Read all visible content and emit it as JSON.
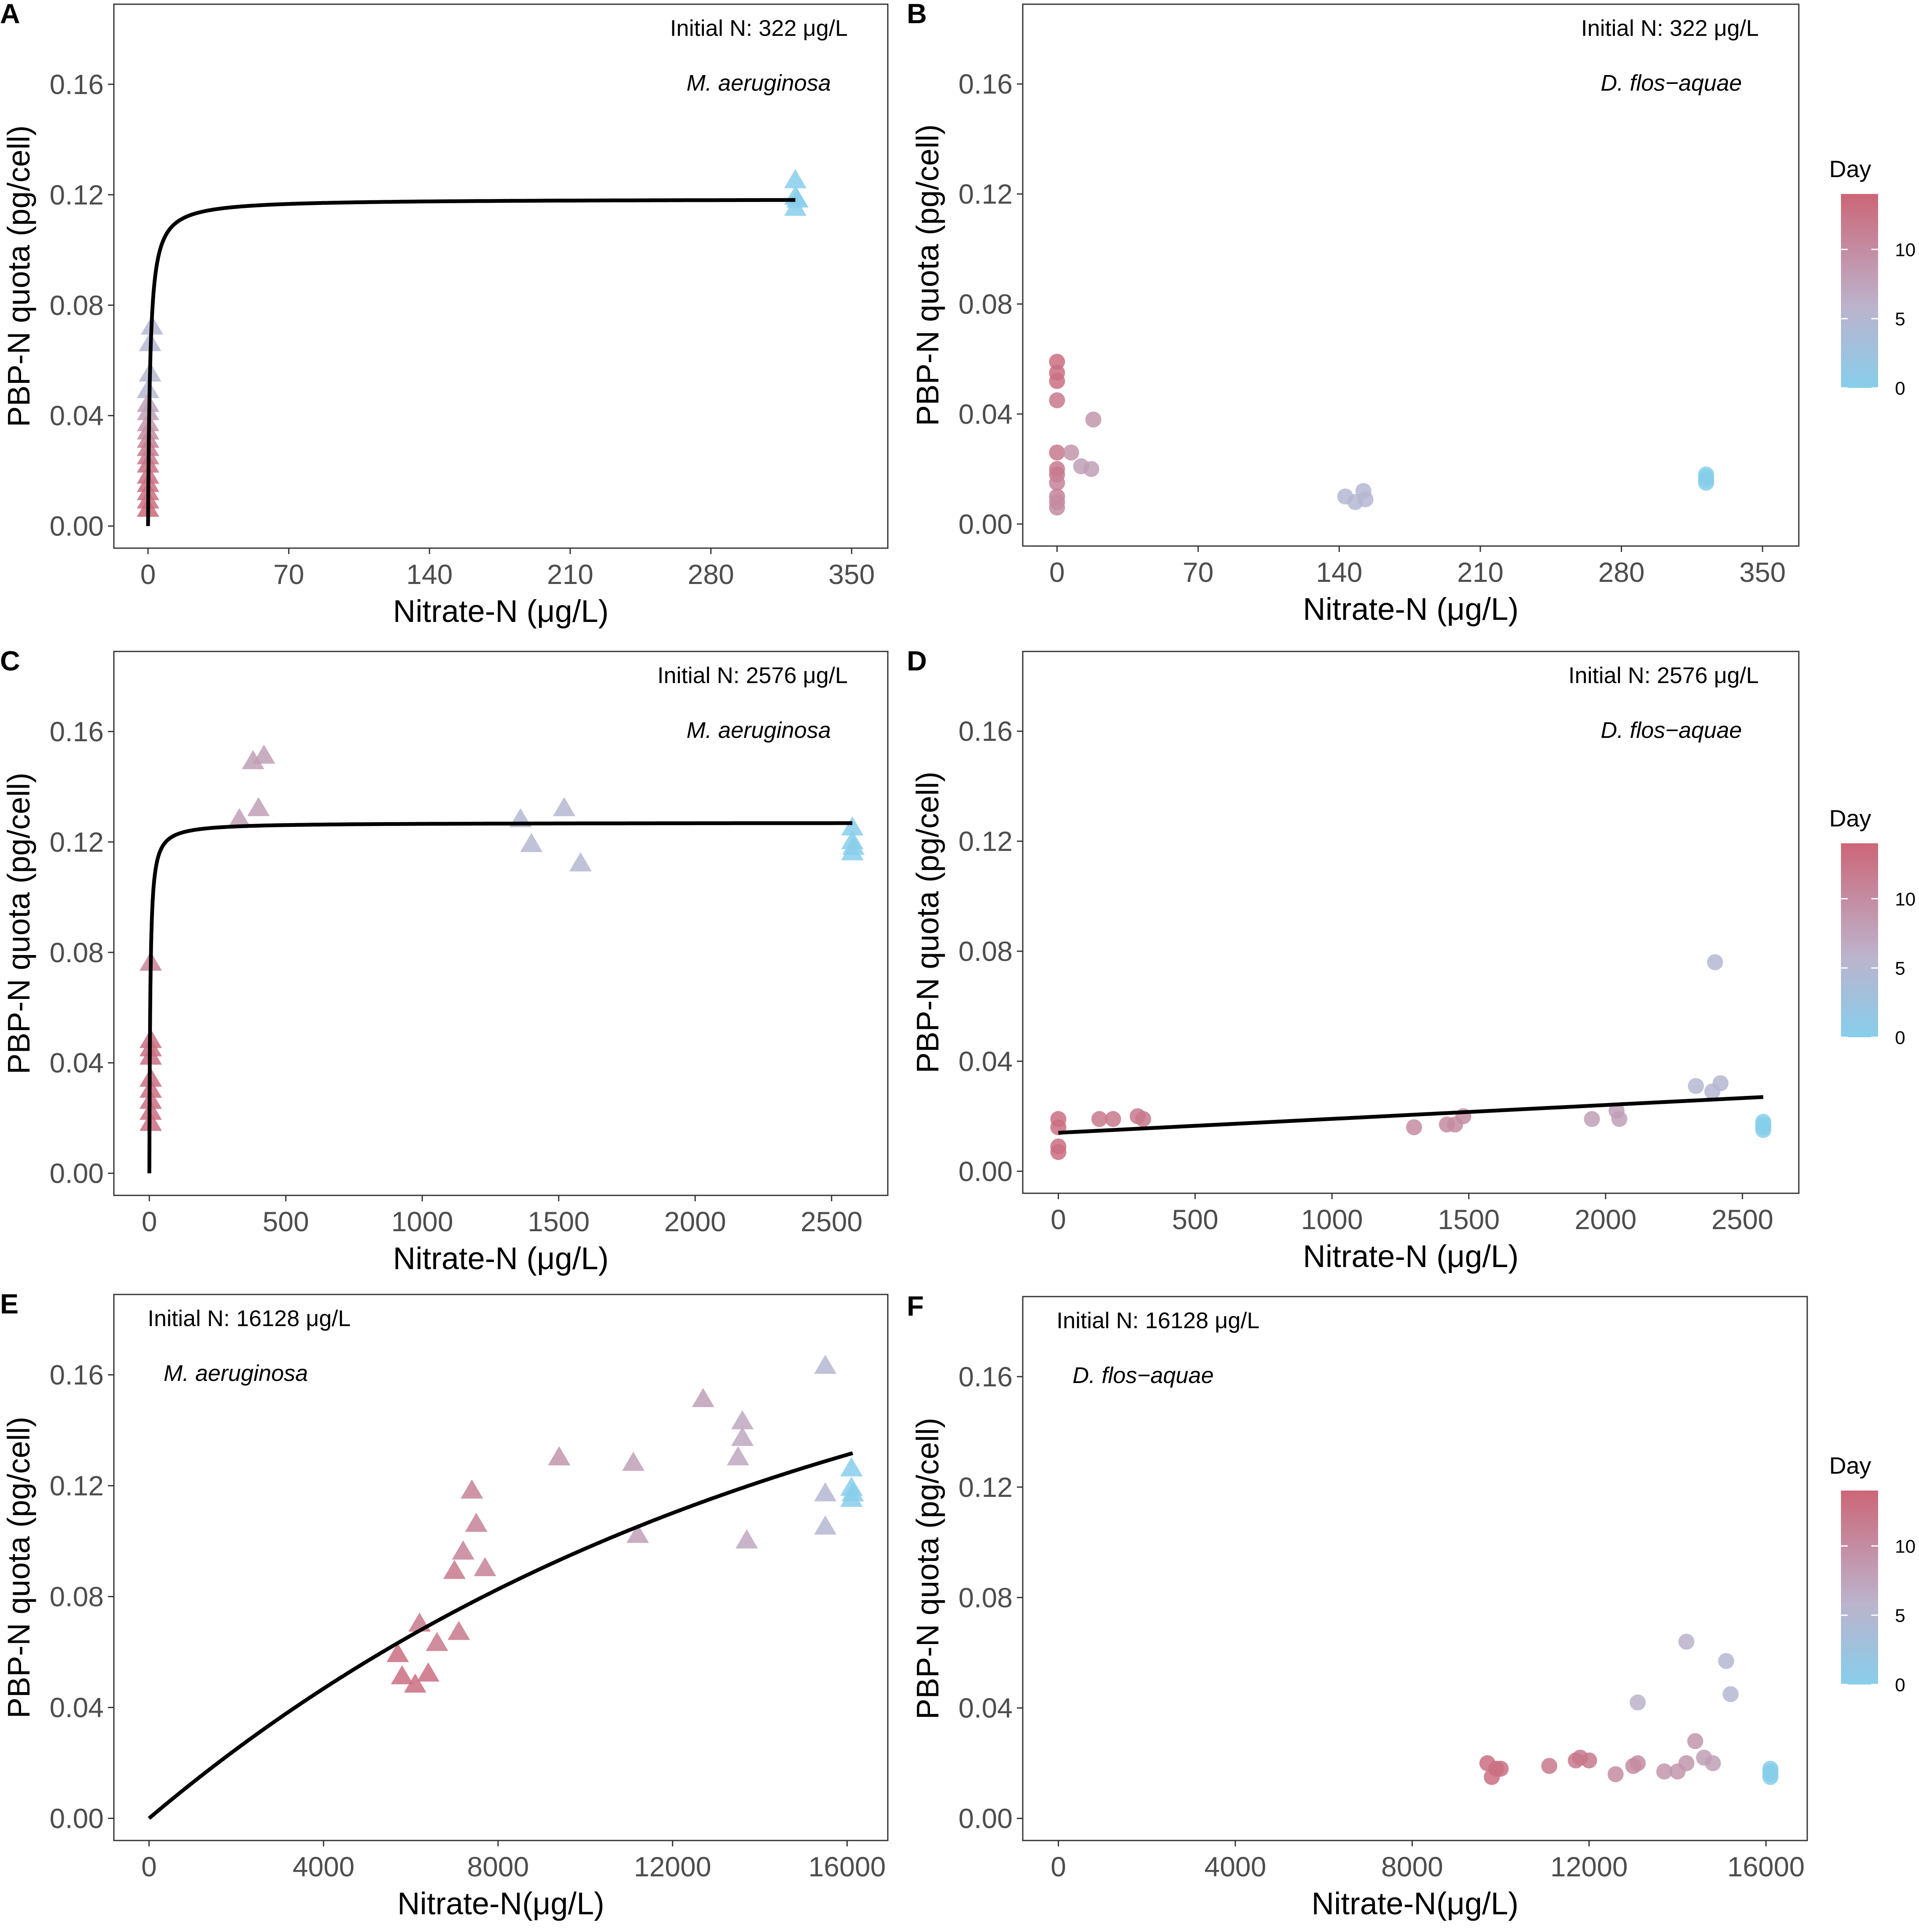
{
  "colors": {
    "low": "#87ceeb",
    "mid": "#bcb3cc",
    "high": "#cc6677",
    "line": "#000000",
    "axis": "#333333"
  },
  "legend": {
    "title": "Day",
    "ticks": [
      "10",
      "5",
      "0"
    ],
    "tick_values": [
      10,
      5,
      0
    ],
    "day_max": 14
  },
  "chart_data": [
    {
      "id": "A",
      "type": "scatter",
      "marker": "triangle",
      "panel_label": "A",
      "initial_n": "Initial N: 322 μg/L",
      "species": "M. aeruginosa",
      "xlabel": "Nitrate-N (μg/L)",
      "ylabel": "PBP-N quota (pg/cell)",
      "xlim": [
        -17,
        368
      ],
      "ylim": [
        -0.008,
        0.189
      ],
      "xticks": [
        0,
        70,
        140,
        210,
        280,
        350
      ],
      "xtick_labels": [
        "0",
        "70",
        "140",
        "210",
        "280",
        "350"
      ],
      "yticks": [
        0,
        0.04,
        0.08,
        0.12,
        0.16
      ],
      "ytick_labels": [
        "0.00",
        "0.04",
        "0.08",
        "0.12",
        "0.16"
      ],
      "annot_pos": "top-right",
      "points": [
        [
          322,
          0.125,
          0
        ],
        [
          322,
          0.119,
          0
        ],
        [
          322,
          0.115,
          0
        ],
        [
          323,
          0.118,
          0
        ],
        [
          2,
          0.072,
          5
        ],
        [
          1,
          0.066,
          5
        ],
        [
          1,
          0.055,
          5
        ],
        [
          0,
          0.049,
          5
        ],
        [
          0,
          0.044,
          8
        ],
        [
          0,
          0.041,
          8
        ],
        [
          0,
          0.037,
          9
        ],
        [
          0,
          0.034,
          10
        ],
        [
          0,
          0.031,
          11
        ],
        [
          0,
          0.028,
          12
        ],
        [
          0,
          0.025,
          12
        ],
        [
          0,
          0.022,
          13
        ],
        [
          0,
          0.018,
          13
        ],
        [
          0,
          0.015,
          13
        ],
        [
          0,
          0.012,
          13
        ],
        [
          0,
          0.009,
          13
        ],
        [
          0,
          0.006,
          14
        ]
      ],
      "fit": {
        "model": "michaelis",
        "qmax": 0.1185,
        "k": 1.1,
        "xmax": 322
      }
    },
    {
      "id": "B",
      "type": "scatter",
      "marker": "circle",
      "panel_label": "B",
      "initial_n": "Initial N: 322 μg/L",
      "species": "D. flos−aquae",
      "xlabel": "Nitrate-N (μg/L)",
      "ylabel": "PBP-N quota (pg/cell)",
      "xlim": [
        -17,
        368
      ],
      "ylim": [
        -0.008,
        0.189
      ],
      "xticks": [
        0,
        70,
        140,
        210,
        280,
        350
      ],
      "xtick_labels": [
        "0",
        "70",
        "140",
        "210",
        "280",
        "350"
      ],
      "yticks": [
        0,
        0.04,
        0.08,
        0.12,
        0.16
      ],
      "ytick_labels": [
        "0.00",
        "0.04",
        "0.08",
        "0.12",
        "0.16"
      ],
      "annot_pos": "top-right",
      "points": [
        [
          0,
          0.059,
          13
        ],
        [
          0,
          0.055,
          13
        ],
        [
          0,
          0.052,
          13
        ],
        [
          0,
          0.045,
          12
        ],
        [
          0,
          0.026,
          12
        ],
        [
          0,
          0.02,
          12
        ],
        [
          0,
          0.018,
          12
        ],
        [
          0,
          0.015,
          11
        ],
        [
          0,
          0.01,
          11
        ],
        [
          0,
          0.008,
          10
        ],
        [
          0,
          0.006,
          10
        ],
        [
          7,
          0.026,
          9
        ],
        [
          12,
          0.021,
          8
        ],
        [
          17,
          0.02,
          8
        ],
        [
          18,
          0.038,
          9
        ],
        [
          143,
          0.01,
          5
        ],
        [
          148,
          0.008,
          5
        ],
        [
          152,
          0.012,
          5
        ],
        [
          153,
          0.009,
          5
        ],
        [
          322,
          0.018,
          0
        ],
        [
          322,
          0.016,
          0
        ],
        [
          322,
          0.015,
          0
        ],
        [
          322,
          0.017,
          0
        ]
      ]
    },
    {
      "id": "C",
      "type": "scatter",
      "marker": "triangle",
      "panel_label": "C",
      "initial_n": "Initial N: 2576 μg/L",
      "species": "M. aeruginosa",
      "xlabel": "Nitrate-N (μg/L)",
      "ylabel": "PBP-N quota (pg/cell)",
      "xlim": [
        -130,
        2706
      ],
      "ylim": [
        -0.008,
        0.189
      ],
      "xticks": [
        0,
        500,
        1000,
        1500,
        2000,
        2500
      ],
      "xtick_labels": [
        "0",
        "500",
        "1000",
        "1500",
        "2000",
        "2500"
      ],
      "yticks": [
        0,
        0.04,
        0.08,
        0.12,
        0.16
      ],
      "ytick_labels": [
        "0.00",
        "0.04",
        "0.08",
        "0.12",
        "0.16"
      ],
      "annot_pos": "top-right",
      "points": [
        [
          2576,
          0.125,
          0
        ],
        [
          2576,
          0.12,
          0
        ],
        [
          2576,
          0.116,
          0
        ],
        [
          2580,
          0.118,
          0
        ],
        [
          1360,
          0.128,
          5
        ],
        [
          1400,
          0.119,
          5
        ],
        [
          1520,
          0.132,
          5
        ],
        [
          1580,
          0.112,
          5
        ],
        [
          330,
          0.128,
          8
        ],
        [
          380,
          0.149,
          8
        ],
        [
          400,
          0.132,
          8
        ],
        [
          420,
          0.151,
          8
        ],
        [
          5,
          0.076,
          11
        ],
        [
          5,
          0.048,
          13
        ],
        [
          5,
          0.045,
          13
        ],
        [
          5,
          0.042,
          13
        ],
        [
          5,
          0.034,
          13
        ],
        [
          5,
          0.03,
          13
        ],
        [
          5,
          0.026,
          13
        ],
        [
          5,
          0.022,
          13
        ],
        [
          5,
          0.018,
          13
        ]
      ],
      "fit": {
        "model": "michaelis",
        "qmax": 0.127,
        "k": 3.5,
        "xmax": 2576
      }
    },
    {
      "id": "D",
      "type": "scatter",
      "marker": "circle",
      "panel_label": "D",
      "initial_n": "Initial N: 2576 μg/L",
      "species": "D. flos−aquae",
      "xlabel": "Nitrate-N (μg/L)",
      "ylabel": "PBP-N quota (pg/cell)",
      "xlim": [
        -130,
        2706
      ],
      "ylim": [
        -0.008,
        0.189
      ],
      "xticks": [
        0,
        500,
        1000,
        1500,
        2000,
        2500
      ],
      "xtick_labels": [
        "0",
        "500",
        "1000",
        "1500",
        "2000",
        "2500"
      ],
      "yticks": [
        0,
        0.04,
        0.08,
        0.12,
        0.16
      ],
      "ytick_labels": [
        "0.00",
        "0.04",
        "0.08",
        "0.12",
        "0.16"
      ],
      "annot_pos": "top-right",
      "points": [
        [
          0,
          0.019,
          13
        ],
        [
          0,
          0.016,
          13
        ],
        [
          0,
          0.009,
          13
        ],
        [
          0,
          0.007,
          13
        ],
        [
          150,
          0.019,
          12
        ],
        [
          200,
          0.019,
          12
        ],
        [
          290,
          0.02,
          12
        ],
        [
          310,
          0.019,
          12
        ],
        [
          1300,
          0.016,
          10
        ],
        [
          1420,
          0.017,
          10
        ],
        [
          1450,
          0.017,
          10
        ],
        [
          1480,
          0.02,
          10
        ],
        [
          1950,
          0.019,
          8
        ],
        [
          2040,
          0.022,
          8
        ],
        [
          2050,
          0.019,
          8
        ],
        [
          2330,
          0.031,
          5
        ],
        [
          2390,
          0.029,
          5
        ],
        [
          2400,
          0.076,
          5
        ],
        [
          2420,
          0.032,
          5
        ],
        [
          2576,
          0.018,
          0
        ],
        [
          2576,
          0.016,
          0
        ],
        [
          2576,
          0.015,
          0
        ],
        [
          2576,
          0.017,
          0
        ]
      ],
      "fit": {
        "model": "linear",
        "x": [
          0,
          2576
        ],
        "y": [
          0.014,
          0.027
        ]
      }
    },
    {
      "id": "E",
      "type": "scatter",
      "marker": "triangle",
      "panel_label": "E",
      "initial_n": "Initial N: 16128 μg/L",
      "species": "M. aeruginosa",
      "xlabel": "Nitrate-N(μg/L)",
      "ylabel": "PBP-N quota (pg/cell)",
      "xlim": [
        -806,
        16933
      ],
      "ylim": [
        -0.008,
        0.189
      ],
      "xticks": [
        0,
        4000,
        8000,
        12000,
        16000
      ],
      "xtick_labels": [
        "0",
        "4000",
        "8000",
        "12000",
        "16000"
      ],
      "yticks": [
        0,
        0.04,
        0.08,
        0.12,
        0.16
      ],
      "ytick_labels": [
        "0.00",
        "0.04",
        "0.08",
        "0.12",
        "0.16"
      ],
      "annot_pos": "top-left",
      "points": [
        [
          16100,
          0.126,
          0
        ],
        [
          16100,
          0.119,
          0
        ],
        [
          16100,
          0.115,
          0
        ],
        [
          16130,
          0.117,
          0
        ],
        [
          15500,
          0.163,
          5
        ],
        [
          15500,
          0.117,
          5
        ],
        [
          15500,
          0.105,
          5
        ],
        [
          13600,
          0.143,
          7
        ],
        [
          13600,
          0.137,
          7
        ],
        [
          13500,
          0.13,
          7
        ],
        [
          13700,
          0.1,
          7
        ],
        [
          12700,
          0.151,
          8
        ],
        [
          11100,
          0.128,
          8
        ],
        [
          11200,
          0.102,
          8
        ],
        [
          9400,
          0.13,
          9
        ],
        [
          7400,
          0.118,
          11
        ],
        [
          7500,
          0.106,
          11
        ],
        [
          7700,
          0.09,
          11
        ],
        [
          7200,
          0.096,
          11
        ],
        [
          7000,
          0.089,
          12
        ],
        [
          7100,
          0.067,
          12
        ],
        [
          6600,
          0.063,
          12
        ],
        [
          6200,
          0.07,
          12
        ],
        [
          6400,
          0.052,
          13
        ],
        [
          5700,
          0.059,
          13
        ],
        [
          5800,
          0.051,
          13
        ],
        [
          6100,
          0.048,
          13
        ]
      ],
      "fit": {
        "model": "saturating-exp",
        "qmax": 0.2,
        "k": 15000,
        "xmax": 16128
      }
    },
    {
      "id": "F",
      "type": "scatter",
      "marker": "circle",
      "panel_label": "F",
      "initial_n": "Initial N: 16128 μg/L",
      "species": "D. flos−aquae",
      "xlabel": "Nitrate-N(μg/L)",
      "ylabel": "PBP-N quota (pg/cell)",
      "xlim": [
        -806,
        16933
      ],
      "ylim": [
        -0.008,
        0.189
      ],
      "xticks": [
        0,
        4000,
        8000,
        12000,
        16000
      ],
      "xtick_labels": [
        "0",
        "4000",
        "8000",
        "12000",
        "16000"
      ],
      "yticks": [
        0,
        0.04,
        0.08,
        0.12,
        0.16
      ],
      "ytick_labels": [
        "0.00",
        "0.04",
        "0.08",
        "0.12",
        "0.16"
      ],
      "annot_pos": "top-left",
      "points": [
        [
          9700,
          0.02,
          13
        ],
        [
          9800,
          0.015,
          13
        ],
        [
          9900,
          0.018,
          13
        ],
        [
          10000,
          0.018,
          13
        ],
        [
          11100,
          0.019,
          12
        ],
        [
          11700,
          0.021,
          12
        ],
        [
          11800,
          0.022,
          12
        ],
        [
          12000,
          0.021,
          12
        ],
        [
          12600,
          0.016,
          10
        ],
        [
          13000,
          0.019,
          10
        ],
        [
          13100,
          0.02,
          10
        ],
        [
          13700,
          0.017,
          9
        ],
        [
          14000,
          0.017,
          9
        ],
        [
          14200,
          0.02,
          9
        ],
        [
          14400,
          0.028,
          9
        ],
        [
          14600,
          0.022,
          8
        ],
        [
          14800,
          0.02,
          8
        ],
        [
          13100,
          0.042,
          6
        ],
        [
          14200,
          0.064,
          6
        ],
        [
          15100,
          0.057,
          5
        ],
        [
          15200,
          0.045,
          5
        ],
        [
          16100,
          0.018,
          0
        ],
        [
          16100,
          0.016,
          0
        ],
        [
          16100,
          0.015,
          0
        ],
        [
          16100,
          0.017,
          0
        ]
      ]
    }
  ]
}
